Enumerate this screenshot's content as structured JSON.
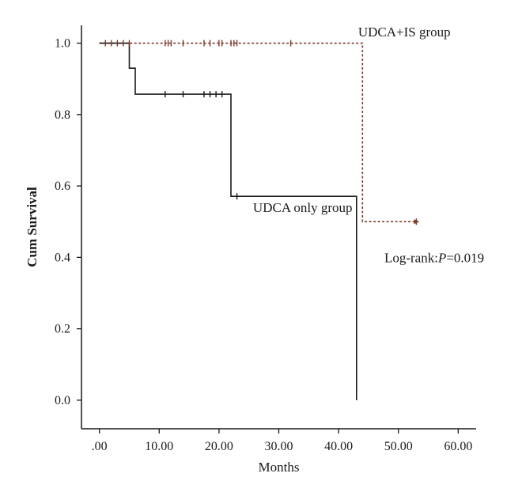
{
  "chart_data": {
    "type": "line",
    "title": "",
    "xlabel": "Months",
    "ylabel": "Cum Survival",
    "xlim": [
      -3,
      63
    ],
    "ylim": [
      -0.08,
      1.05
    ],
    "grid": false,
    "x_ticks": [
      0,
      10,
      20,
      30,
      40,
      50,
      60
    ],
    "x_tick_labels": [
      ".00",
      "10.00",
      "20.00",
      "30.00",
      "40.00",
      "50.00",
      "60.00"
    ],
    "y_ticks": [
      0,
      0.2,
      0.4,
      0.6,
      0.8,
      1.0
    ],
    "y_tick_labels": [
      "0.0",
      "0.2",
      "0.4",
      "0.6",
      "0.8",
      "1.0"
    ],
    "series": [
      {
        "name": "UDCA+IS group",
        "style": "dashed",
        "color": "#7a3a2a",
        "steps": [
          [
            0,
            1.0
          ],
          [
            44,
            1.0
          ],
          [
            44,
            0.5
          ],
          [
            53,
            0.5
          ]
        ],
        "censored": [
          [
            1,
            1.0
          ],
          [
            2,
            1.0
          ],
          [
            3,
            1.0
          ],
          [
            4,
            1.0
          ],
          [
            5,
            1.0
          ],
          [
            11,
            1.0
          ],
          [
            11.5,
            1.0
          ],
          [
            12,
            1.0
          ],
          [
            14,
            1.0
          ],
          [
            17.5,
            1.0
          ],
          [
            18.5,
            1.0
          ],
          [
            20,
            1.0
          ],
          [
            20.5,
            1.0
          ],
          [
            22,
            1.0
          ],
          [
            22.5,
            1.0
          ],
          [
            23,
            1.0
          ],
          [
            32,
            1.0
          ],
          [
            53,
            0.5
          ]
        ]
      },
      {
        "name": "UDCA only group",
        "style": "solid",
        "color": "#1a1a1a",
        "steps": [
          [
            0,
            1.0
          ],
          [
            5,
            1.0
          ],
          [
            5,
            0.93
          ],
          [
            6,
            0.93
          ],
          [
            6,
            0.857
          ],
          [
            22,
            0.857
          ],
          [
            22,
            0.571
          ],
          [
            43,
            0.571
          ],
          [
            43,
            0.0
          ]
        ],
        "censored": [
          [
            11,
            0.857
          ],
          [
            14,
            0.857
          ],
          [
            17.5,
            0.857
          ],
          [
            18.5,
            0.857
          ],
          [
            19.5,
            0.857
          ],
          [
            20.5,
            0.857
          ],
          [
            23,
            0.571
          ]
        ]
      }
    ],
    "annotations": [
      {
        "text": "UDCA+IS group",
        "x": 51,
        "y": 1.032
      },
      {
        "text": "UDCA only group",
        "x": 34,
        "y": 0.54
      },
      {
        "text_prefix": "Log-rank:",
        "text_italic": "P",
        "text_suffix": "=0.019",
        "x": 56,
        "y": 0.4
      }
    ]
  }
}
